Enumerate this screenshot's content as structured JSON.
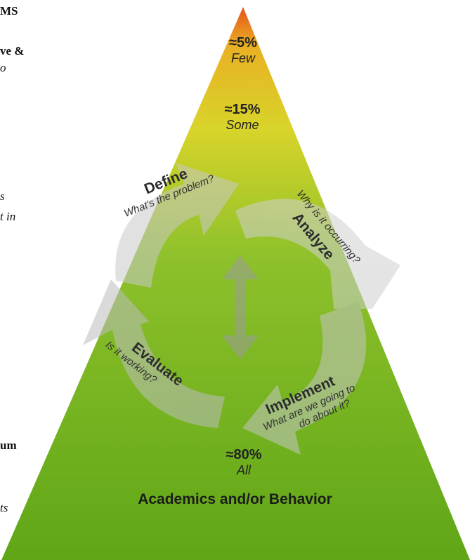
{
  "clipped_left_text": [
    "MS",
    "ve &",
    "o",
    "s",
    "t in",
    "um",
    "ts"
  ],
  "pyramid": {
    "colors": {
      "top": "#e8531b",
      "upper": "#d8d42a",
      "mid": "#8ec12b",
      "base": "#5fa617"
    },
    "tiers": [
      {
        "percent": "≈5%",
        "label": "Few"
      },
      {
        "percent": "≈15%",
        "label": "Some"
      },
      {
        "percent": "≈80%",
        "label": "All"
      }
    ],
    "base_label": "Academics and/or Behavior"
  },
  "cycle": {
    "steps": [
      {
        "title": "Define",
        "question": "What's the problem?"
      },
      {
        "title": "Analyze",
        "question": "Why is it occurring?"
      },
      {
        "title": "Implement",
        "question": "What are we going to do about it?",
        "question_lines": [
          "What are we going to",
          "do about it?"
        ]
      },
      {
        "title": "Evaluate",
        "question": "Is it working?"
      }
    ],
    "center_icon": "double-headed-vertical-arrow-icon"
  }
}
